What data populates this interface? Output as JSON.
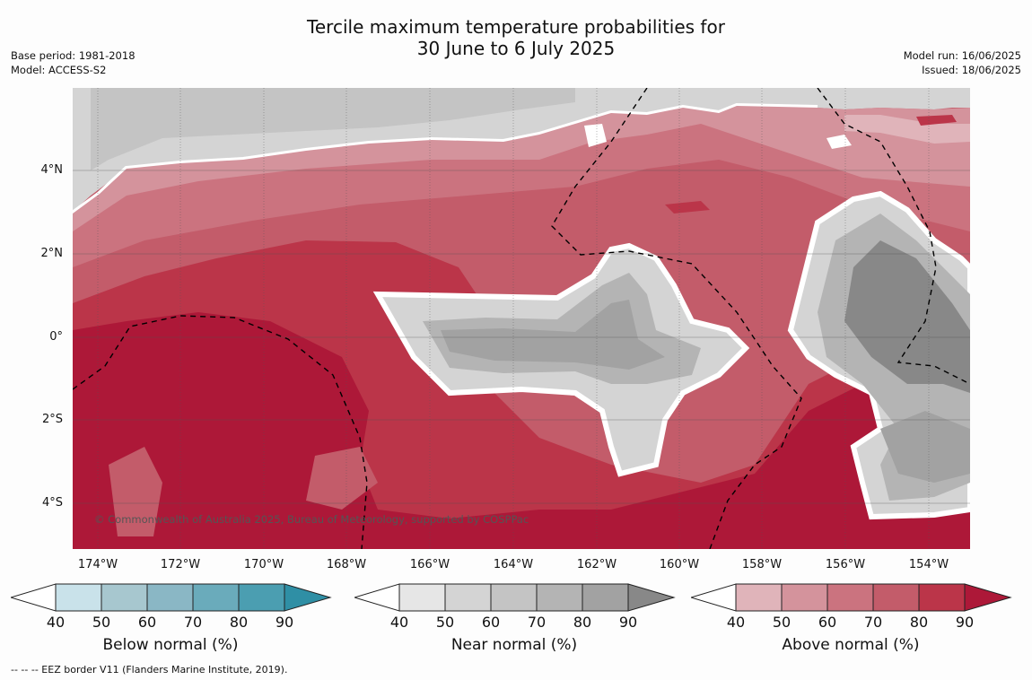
{
  "title_line1": "Tercile maximum temperature probabilities for",
  "title_line2": "30 June to 6 July 2025",
  "base_period": "Base period: 1981-2018",
  "model": "Model: ACCESS-S2",
  "model_run": "Model run: 16/06/2025",
  "issued": "Issued: 18/06/2025",
  "copyright": "© Commonwealth of Australia 2025, Bureau of Meteorology, supported by COSPPac",
  "footer": "-- -- -- EEZ border V11 (Flanders Marine Institute, 2019).",
  "lat_labels": [
    "4°N",
    "2°N",
    "0°",
    "2°S",
    "4°S"
  ],
  "lon_labels": [
    "174°W",
    "172°W",
    "170°W",
    "168°W",
    "166°W",
    "164°W",
    "162°W",
    "160°W",
    "158°W",
    "156°W",
    "154°W"
  ],
  "colorbars": [
    {
      "label": "Below normal (%)",
      "ticks": [
        "40",
        "50",
        "60",
        "70",
        "80",
        "90"
      ],
      "colors": [
        "#c9e2ea",
        "#a7c7cf",
        "#8ab7c5",
        "#6aabbb",
        "#4b9eb1",
        "#2f8fa5"
      ]
    },
    {
      "label": "Near normal (%)",
      "ticks": [
        "40",
        "50",
        "60",
        "70",
        "80",
        "90"
      ],
      "colors": [
        "#e6e6e6",
        "#d4d4d4",
        "#c4c4c4",
        "#b4b4b4",
        "#a2a2a2",
        "#888888"
      ]
    },
    {
      "label": "Above normal (%)",
      "ticks": [
        "40",
        "50",
        "60",
        "70",
        "80",
        "90"
      ],
      "colors": [
        "#e0b4ba",
        "#d4939c",
        "#cb737f",
        "#c35c6a",
        "#bb3549",
        "#ad1838"
      ]
    }
  ]
}
